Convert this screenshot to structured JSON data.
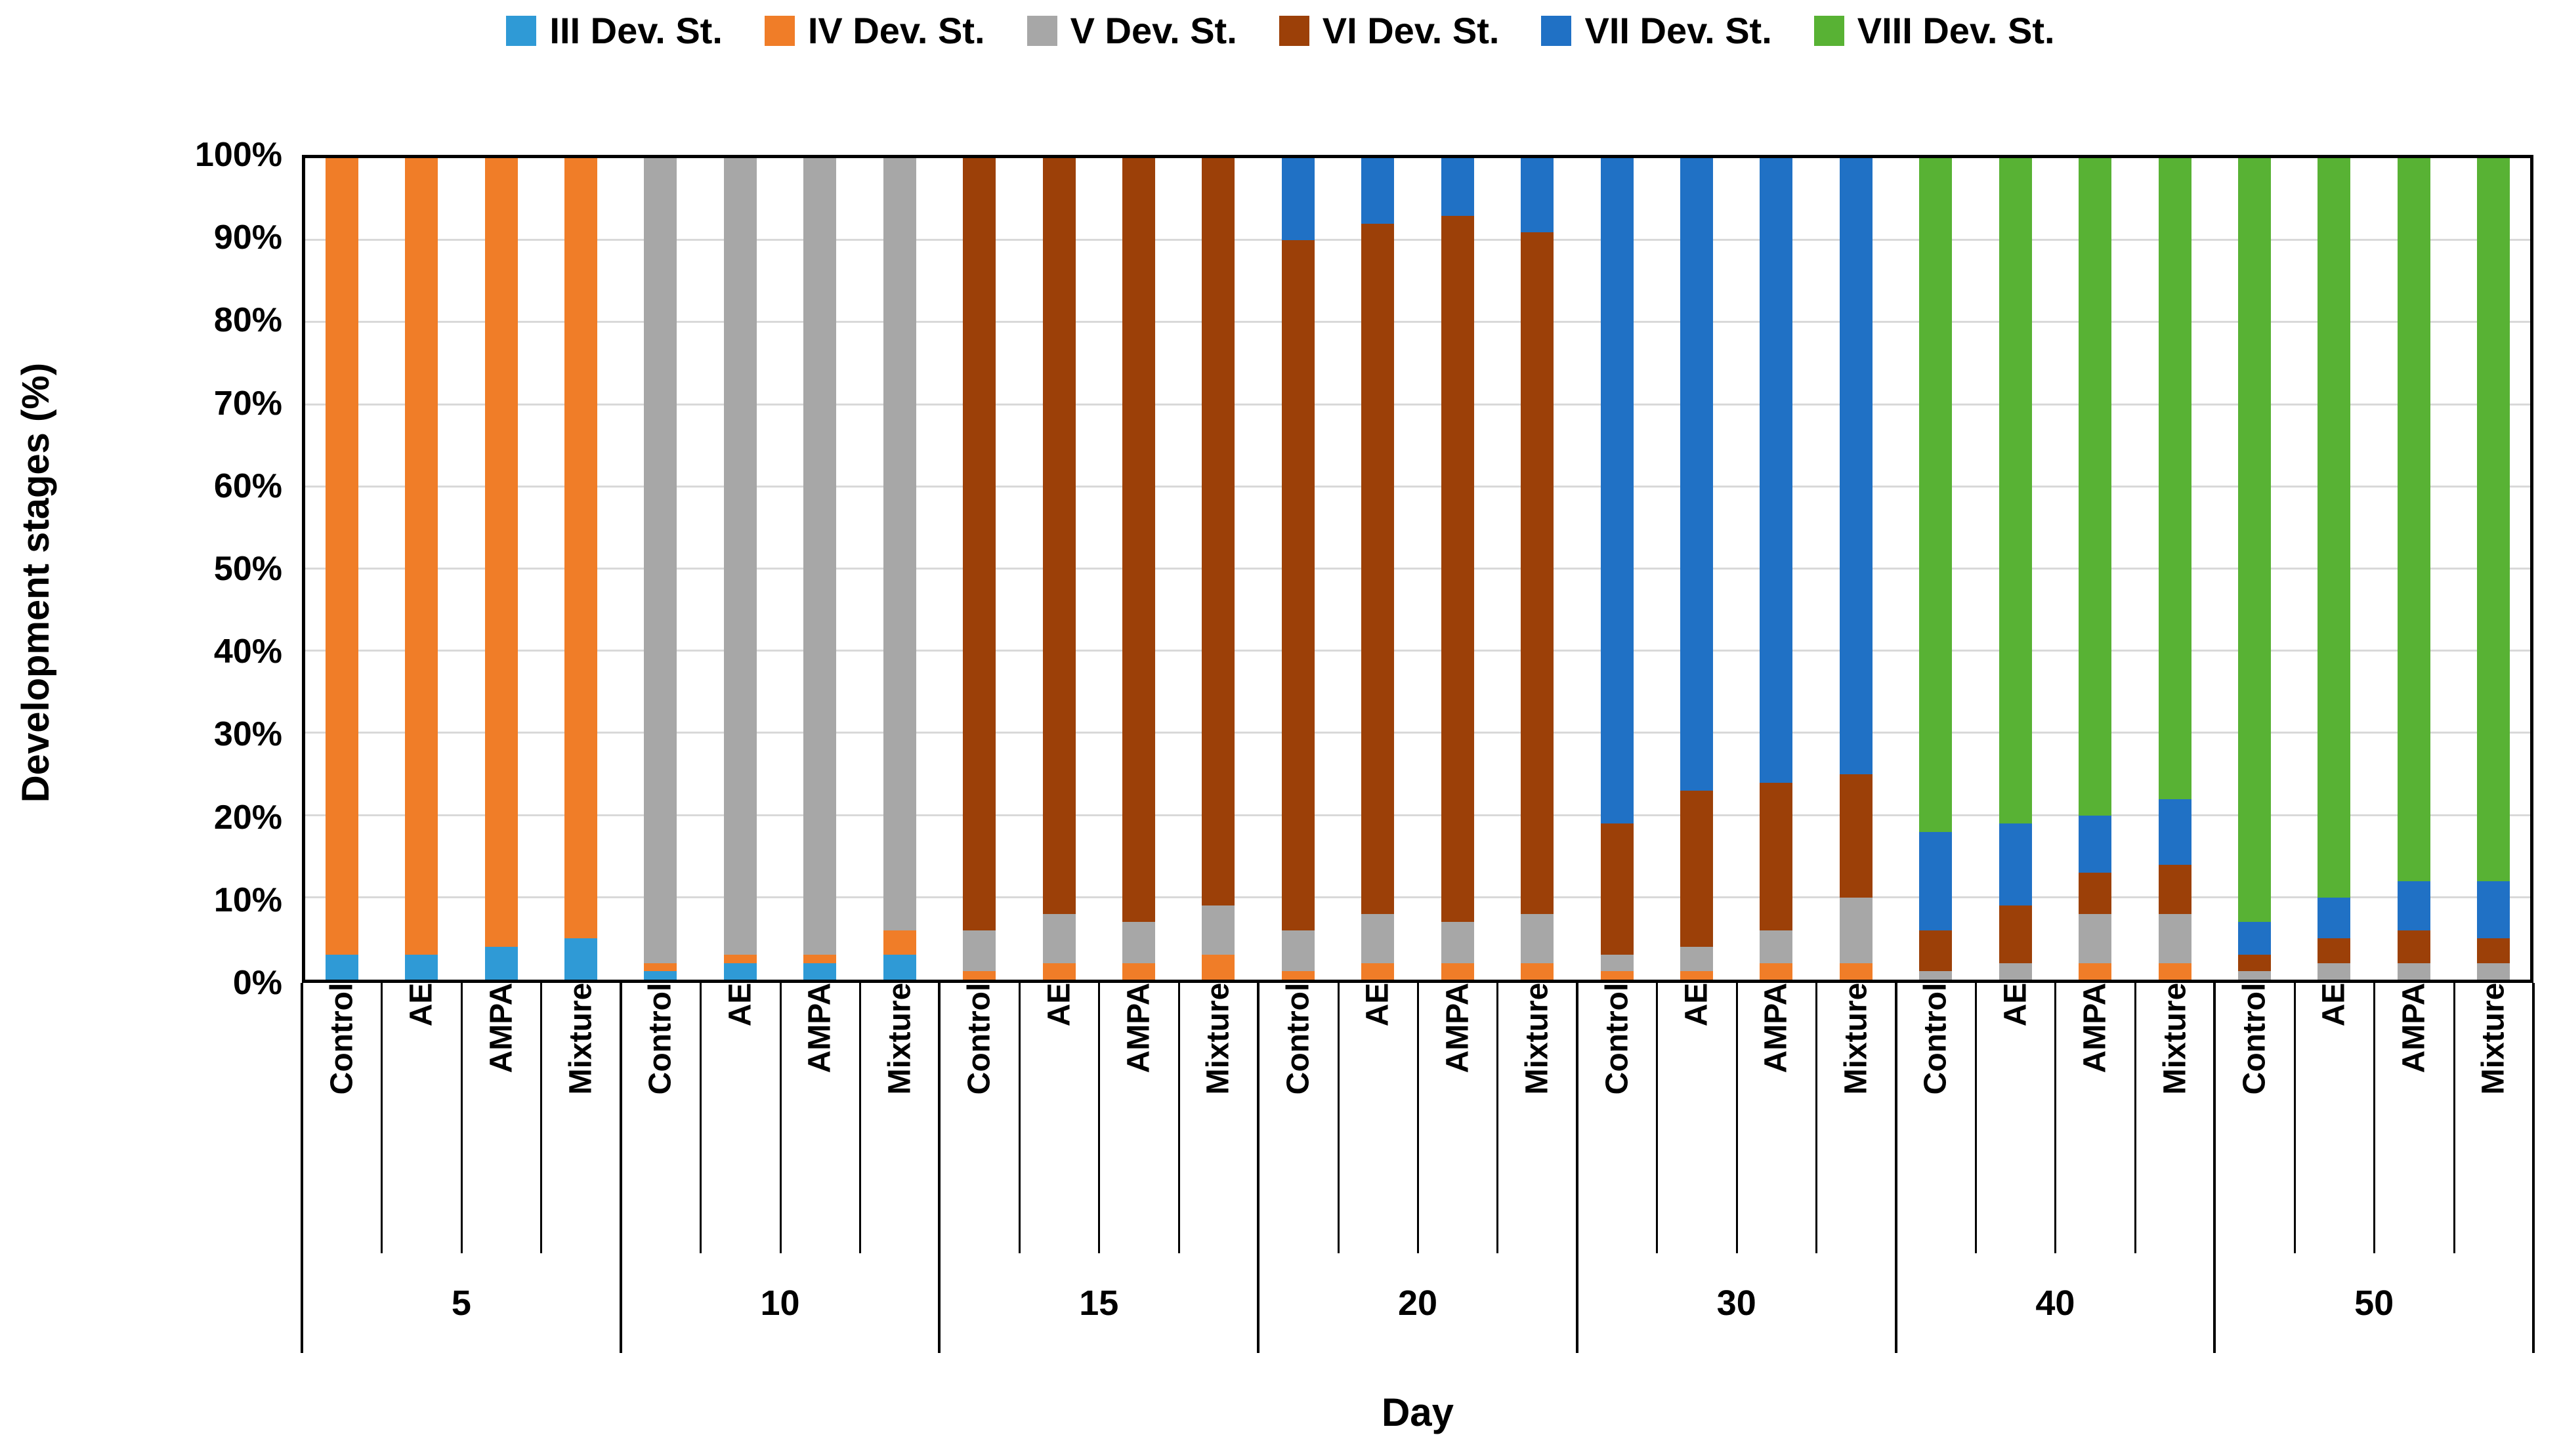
{
  "y_axis": {
    "title": "Development stages (%)",
    "ticks": [
      "100%",
      "90%",
      "80%",
      "70%",
      "60%",
      "50%",
      "40%",
      "30%",
      "20%",
      "10%",
      "0%"
    ]
  },
  "x_axis": {
    "title": "Day"
  },
  "colors": {
    "gridline": "#D9D9D9",
    "axis": "#000000",
    "background": "#FFFFFF"
  },
  "chart_data": {
    "type": "bar",
    "subtype": "stacked-100-percent",
    "xlabel": "Day",
    "ylabel": "Development stages (%)",
    "ylim": [
      0,
      100
    ],
    "grid": "horizontal, every 10%",
    "legend_position": "top",
    "days": [
      "5",
      "10",
      "15",
      "20",
      "30",
      "40",
      "50"
    ],
    "treatments": [
      "Control",
      "AE",
      "AMPA",
      "Mixture"
    ],
    "stages": [
      {
        "id": "III",
        "label": "III Dev. St.",
        "color": "#2F9AD6"
      },
      {
        "id": "IV",
        "label": "IV Dev. St.",
        "color": "#F07D28"
      },
      {
        "id": "V",
        "label": "V Dev. St.",
        "color": "#A7A7A7"
      },
      {
        "id": "VI",
        "label": "VI Dev. St.",
        "color": "#9C4008"
      },
      {
        "id": "VII",
        "label": "VII Dev. St.",
        "color": "#2071C5"
      },
      {
        "id": "VIII",
        "label": "VIII Dev. St.",
        "color": "#58B234"
      }
    ],
    "bar_order_note": "28 bars = 7 days x 4 treatments (Control, AE, AMPA, Mixture); values are percent of each bar, stacked bottom-up III to VIII",
    "series": {
      "III": [
        3,
        3,
        4,
        5,
        1,
        2,
        2,
        3,
        0,
        0,
        0,
        0,
        0,
        0,
        0,
        0,
        0,
        0,
        0,
        0,
        0,
        0,
        0,
        0,
        0,
        0,
        0,
        0
      ],
      "IV": [
        97,
        97,
        96,
        95,
        1,
        1,
        1,
        3,
        1,
        2,
        2,
        3,
        1,
        2,
        2,
        2,
        1,
        1,
        2,
        2,
        0,
        0,
        2,
        2,
        0,
        0,
        0,
        0
      ],
      "V": [
        0,
        0,
        0,
        0,
        98,
        97,
        97,
        94,
        5,
        6,
        5,
        6,
        5,
        6,
        5,
        6,
        2,
        3,
        4,
        8,
        1,
        2,
        6,
        6,
        1,
        2,
        2,
        2
      ],
      "VI": [
        0,
        0,
        0,
        0,
        0,
        0,
        0,
        0,
        94,
        92,
        93,
        91,
        84,
        84,
        86,
        83,
        16,
        19,
        18,
        15,
        5,
        7,
        5,
        6,
        2,
        3,
        4,
        3
      ],
      "VII": [
        0,
        0,
        0,
        0,
        0,
        0,
        0,
        0,
        0,
        0,
        0,
        0,
        10,
        8,
        7,
        9,
        81,
        77,
        76,
        75,
        12,
        10,
        7,
        8,
        4,
        5,
        6,
        7
      ],
      "VIII": [
        0,
        0,
        0,
        0,
        0,
        0,
        0,
        0,
        0,
        0,
        0,
        0,
        0,
        0,
        0,
        0,
        0,
        0,
        0,
        0,
        82,
        81,
        80,
        78,
        93,
        90,
        88,
        88
      ]
    }
  }
}
